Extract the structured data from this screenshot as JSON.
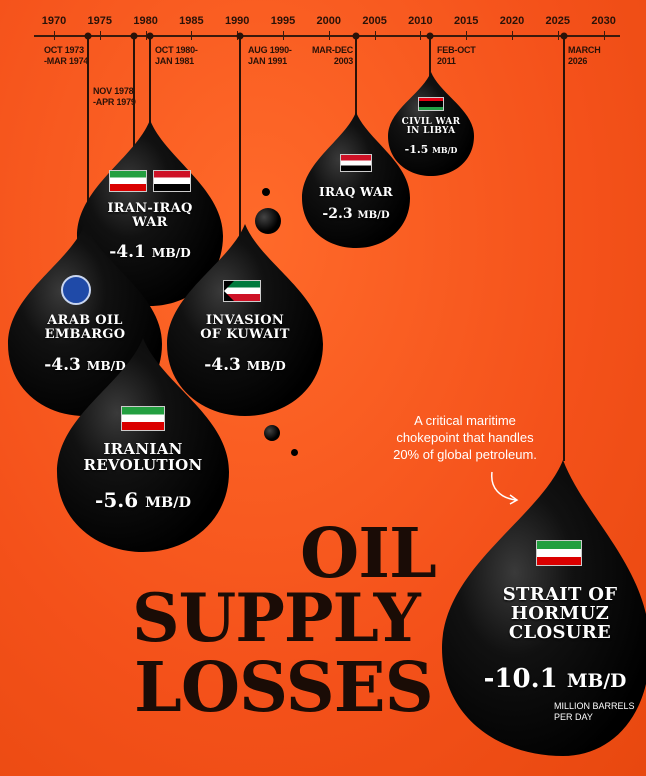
{
  "timeline": {
    "years": [
      "1970",
      "1975",
      "1980",
      "1985",
      "1990",
      "1995",
      "2000",
      "2005",
      "2010",
      "2015",
      "2020",
      "2025",
      "2030"
    ],
    "events": [
      {
        "label_line1": "OCT 1973",
        "label_line2": "-MAR 1974"
      },
      {
        "label_line1": "NOV 1978",
        "label_line2": "-APR 1979"
      },
      {
        "label_line1": "OCT 1980-",
        "label_line2": "JAN 1981"
      },
      {
        "label_line1": "AUG 1990-",
        "label_line2": "JAN 1991"
      },
      {
        "label_line1": "MAR-DEC",
        "label_line2": "2003"
      },
      {
        "label_line1": "FEB-OCT",
        "label_line2": "2011"
      },
      {
        "label_line1": "MARCH",
        "label_line2": "2026"
      }
    ]
  },
  "drops": {
    "iran_iraq": {
      "name_line1": "IRAN-IRAQ",
      "name_line2": "WAR",
      "value": "-4.1",
      "unit": "MB/D"
    },
    "arab_oil": {
      "name_line1": "ARAB OIL",
      "name_line2": "EMBARGO",
      "value": "-4.3",
      "unit": "MB/D"
    },
    "kuwait": {
      "name_line1": "INVASION",
      "name_line2": "OF KUWAIT",
      "value": "-4.3",
      "unit": "MB/D"
    },
    "iranian_rev": {
      "name_line1": "IRANIAN",
      "name_line2": "REVOLUTION",
      "value": "-5.6",
      "unit": "MB/D"
    },
    "iraq_war": {
      "name_line1": "IRAQ WAR",
      "value": "-2.3",
      "unit": "MB/D"
    },
    "libya": {
      "name_line1": "CIVIL WAR",
      "name_line2": "IN LIBYA",
      "value": "-1.5",
      "unit": "MB/D"
    },
    "hormuz": {
      "name_line1": "STRAIT OF",
      "name_line2": "HORMUZ",
      "name_line3": "CLOSURE",
      "value": "-10.1",
      "unit": "MB/D",
      "unit_note_line1": "MILLION BARRELS",
      "unit_note_line2": "PER DAY"
    }
  },
  "title": {
    "line1": "OIL",
    "line2": "SUPPLY",
    "line3": "LOSSES"
  },
  "note": {
    "line1": "A critical maritime",
    "line2": "chokepoint that handles",
    "line3": "20% of global petroleum."
  },
  "colors": {
    "background": "#f4511a",
    "oil": "#0a0a0a",
    "text": "#1a0c06"
  }
}
